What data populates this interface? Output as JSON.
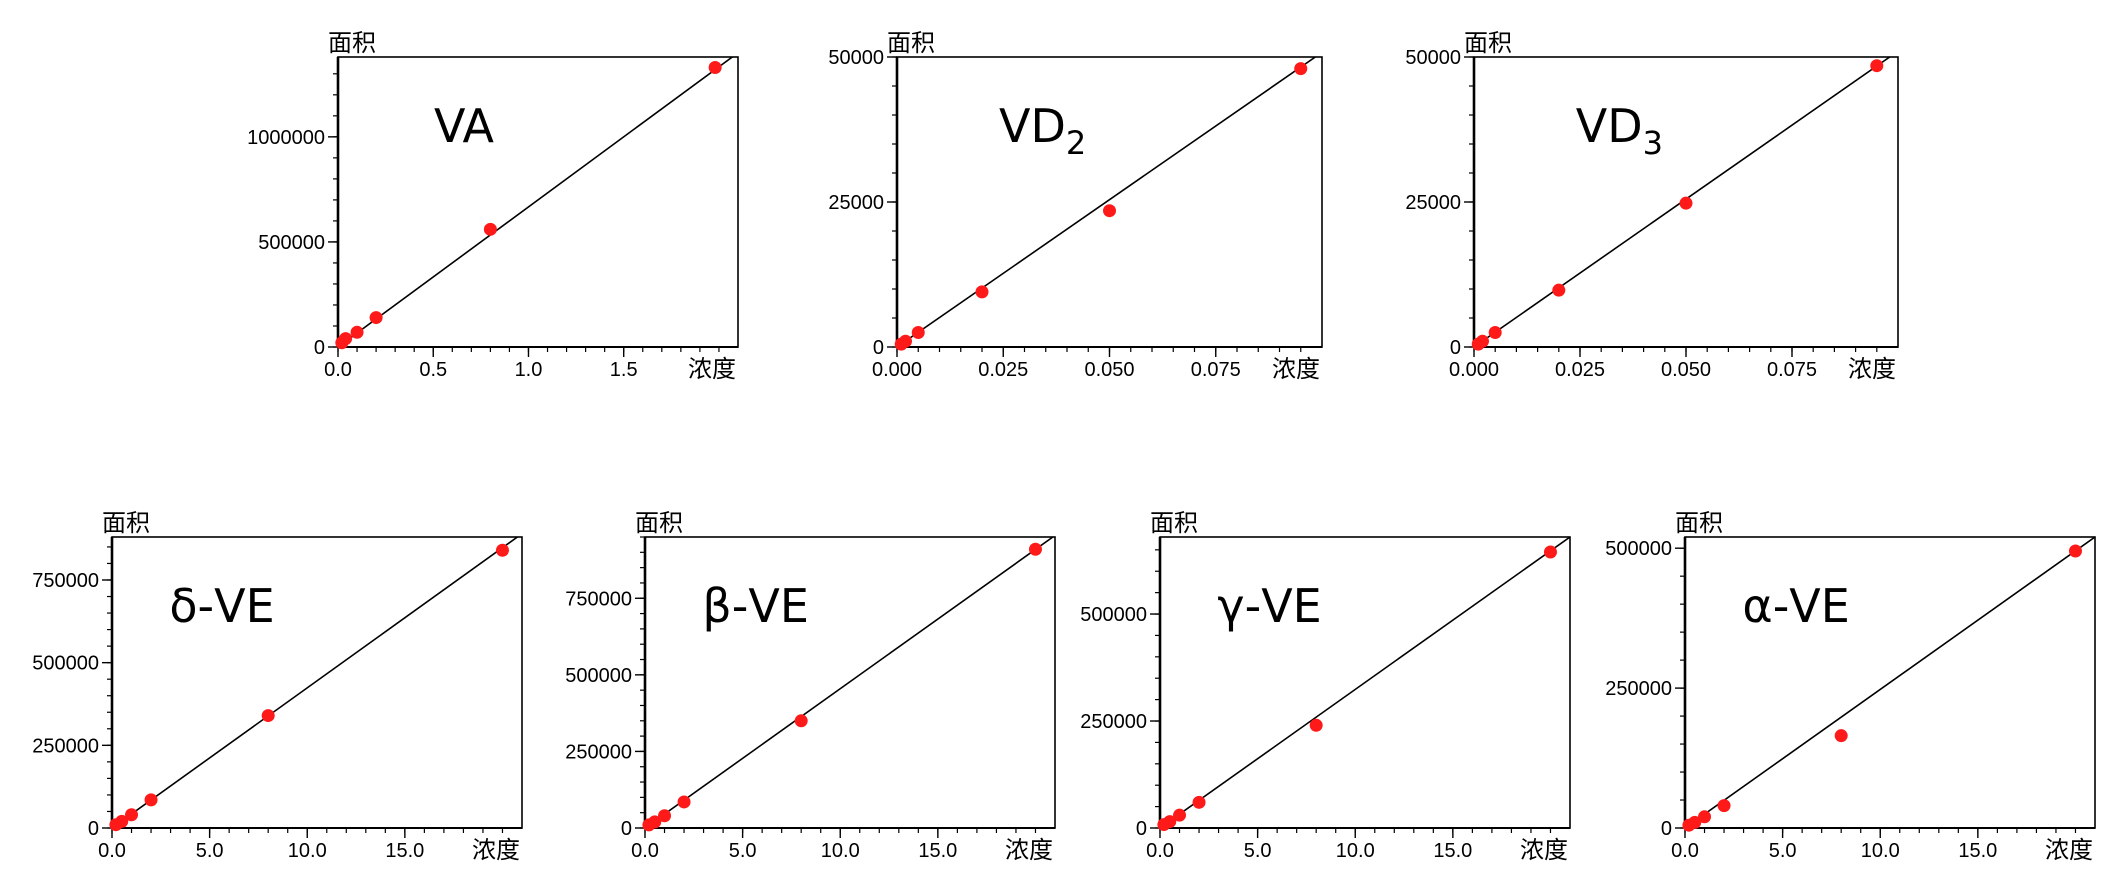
{
  "colors": {
    "point": "#ff1a1a",
    "line": "#000000",
    "axis": "#000000"
  },
  "chart_data": [
    {
      "type": "scatter",
      "name": "VA",
      "name_sub": "",
      "xlabel": "浓度",
      "ylabel": "面积",
      "xlim": [
        0,
        2.1
      ],
      "ylim": [
        0,
        1380000
      ],
      "xticks": [
        0,
        0.5,
        1.0,
        1.5
      ],
      "xtick_labels": [
        "0.0",
        "0.5",
        "1.0",
        "1.5"
      ],
      "yticks": [
        0,
        500000,
        1000000
      ],
      "ytick_labels": [
        "0",
        "500000",
        "1000000"
      ],
      "yminor": 100000,
      "xminor": 0.1,
      "points": {
        "x": [
          0.02,
          0.04,
          0.1,
          0.2,
          0.8,
          1.98
        ],
        "y": [
          20000,
          40000,
          70000,
          140000,
          560000,
          1330000
        ]
      },
      "fit": {
        "x": [
          0,
          2.1
        ],
        "y": [
          0,
          1400000
        ]
      }
    },
    {
      "type": "scatter",
      "name": "VD",
      "name_sub": "2",
      "xlabel": "浓度",
      "ylabel": "面积",
      "xlim": [
        0,
        0.1
      ],
      "ylim": [
        0,
        50000
      ],
      "xticks": [
        0,
        0.025,
        0.05,
        0.075
      ],
      "xtick_labels": [
        "0.000",
        "0.025",
        "0.050",
        "0.075"
      ],
      "yticks": [
        0,
        25000,
        50000
      ],
      "ytick_labels": [
        "0",
        "25000",
        "50000"
      ],
      "yminor": 5000,
      "xminor": 0.005,
      "points": {
        "x": [
          0.001,
          0.002,
          0.005,
          0.02,
          0.05,
          0.095
        ],
        "y": [
          500,
          1000,
          2500,
          9500,
          23500,
          48000
        ]
      },
      "fit": {
        "x": [
          0,
          0.1
        ],
        "y": [
          0,
          50800
        ]
      }
    },
    {
      "type": "scatter",
      "name": "VD",
      "name_sub": "3",
      "xlabel": "浓度",
      "ylabel": "面积",
      "xlim": [
        0,
        0.1
      ],
      "ylim": [
        0,
        50000
      ],
      "xticks": [
        0,
        0.025,
        0.05,
        0.075
      ],
      "xtick_labels": [
        "0.000",
        "0.025",
        "0.050",
        "0.075"
      ],
      "yticks": [
        0,
        25000,
        50000
      ],
      "ytick_labels": [
        "0",
        "25000",
        "50000"
      ],
      "yminor": 5000,
      "xminor": 0.005,
      "points": {
        "x": [
          0.001,
          0.002,
          0.005,
          0.02,
          0.05,
          0.095
        ],
        "y": [
          500,
          1000,
          2500,
          9800,
          24800,
          48500
        ]
      },
      "fit": {
        "x": [
          0,
          0.1
        ],
        "y": [
          0,
          51000
        ]
      }
    },
    {
      "type": "scatter",
      "name": "δ-VE",
      "name_sub": "",
      "xlabel": "浓度",
      "ylabel": "面积",
      "xlim": [
        0,
        21
      ],
      "ylim": [
        0,
        880000
      ],
      "xticks": [
        0,
        5,
        10,
        15
      ],
      "xtick_labels": [
        "0.0",
        "5.0",
        "10.0",
        "15.0"
      ],
      "yticks": [
        0,
        250000,
        500000,
        750000
      ],
      "ytick_labels": [
        "0",
        "250000",
        "500000",
        "750000"
      ],
      "yminor": 50000,
      "xminor": 1,
      "points": {
        "x": [
          0.2,
          0.5,
          1.0,
          2.0,
          8.0,
          20.0
        ],
        "y": [
          10000,
          20000,
          40000,
          85000,
          340000,
          840000
        ]
      },
      "fit": {
        "x": [
          0,
          21
        ],
        "y": [
          0,
          890000
        ]
      }
    },
    {
      "type": "scatter",
      "name": "β-VE",
      "name_sub": "",
      "xlabel": "浓度",
      "ylabel": "面积",
      "xlim": [
        0,
        21
      ],
      "ylim": [
        0,
        950000
      ],
      "xticks": [
        0,
        5,
        10,
        15
      ],
      "xtick_labels": [
        "0.0",
        "5.0",
        "10.0",
        "15.0"
      ],
      "yticks": [
        0,
        250000,
        500000,
        750000
      ],
      "ytick_labels": [
        "0",
        "250000",
        "500000",
        "750000"
      ],
      "yminor": 50000,
      "xminor": 1,
      "points": {
        "x": [
          0.2,
          0.5,
          1.0,
          2.0,
          8.0,
          20.0
        ],
        "y": [
          10000,
          20000,
          40000,
          85000,
          350000,
          910000
        ]
      },
      "fit": {
        "x": [
          0,
          21
        ],
        "y": [
          0,
          955000
        ]
      }
    },
    {
      "type": "scatter",
      "name": "γ-VE",
      "name_sub": "",
      "xlabel": "浓度",
      "ylabel": "面积",
      "xlim": [
        0,
        21
      ],
      "ylim": [
        0,
        680000
      ],
      "xticks": [
        0,
        5,
        10,
        15
      ],
      "xtick_labels": [
        "0.0",
        "5.0",
        "10.0",
        "15.0"
      ],
      "yticks": [
        0,
        250000,
        500000
      ],
      "ytick_labels": [
        "0",
        "250000",
        "500000"
      ],
      "yminor": 50000,
      "xminor": 1,
      "points": {
        "x": [
          0.2,
          0.5,
          1.0,
          2.0,
          8.0,
          20.0
        ],
        "y": [
          8000,
          15000,
          30000,
          60000,
          240000,
          645000
        ]
      },
      "fit": {
        "x": [
          0,
          21
        ],
        "y": [
          0,
          680000
        ]
      }
    },
    {
      "type": "scatter",
      "name": "α-VE",
      "name_sub": "",
      "xlabel": "浓度",
      "ylabel": "面积",
      "xlim": [
        0,
        21
      ],
      "ylim": [
        0,
        520000
      ],
      "xticks": [
        0,
        5,
        10,
        15
      ],
      "xtick_labels": [
        "0.0",
        "5.0",
        "10.0",
        "15.0"
      ],
      "yticks": [
        0,
        250000,
        500000
      ],
      "ytick_labels": [
        "0",
        "250000",
        "500000"
      ],
      "yminor": 50000,
      "xminor": 1,
      "points": {
        "x": [
          0.2,
          0.5,
          1.0,
          2.0,
          8.0,
          20.0
        ],
        "y": [
          5000,
          10000,
          20000,
          40000,
          165000,
          495000
        ]
      },
      "fit": {
        "x": [
          0,
          21
        ],
        "y": [
          0,
          520000
        ]
      }
    }
  ]
}
